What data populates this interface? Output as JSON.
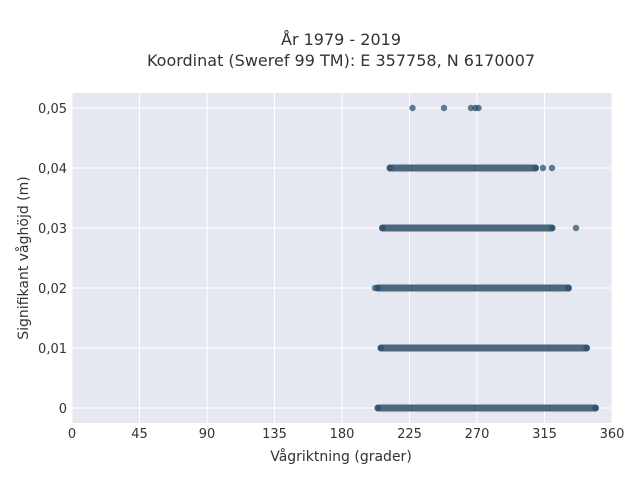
{
  "chart_data": {
    "type": "scatter",
    "title": "År 1979 - 2019",
    "subtitle": "Koordinat (Sweref 99 TM): E 357758, N 6170007",
    "xlabel": "Vågriktning (grader)",
    "ylabel": "Signifikant våghöjd (m)",
    "xlim": [
      0,
      360
    ],
    "ylim": [
      -0.0025,
      0.0525
    ],
    "xticks": [
      0,
      45,
      90,
      135,
      180,
      225,
      270,
      315,
      360
    ],
    "xtick_labels": [
      "0",
      "45",
      "90",
      "135",
      "180",
      "225",
      "270",
      "315",
      "360"
    ],
    "yticks": [
      0,
      0.01,
      0.02,
      0.03,
      0.04,
      0.05
    ],
    "ytick_labels": [
      "0",
      "0,01",
      "0,02",
      "0,03",
      "0,04",
      "0,05"
    ],
    "grid": true,
    "marker_color": "#2f5069",
    "background_color": "#e5e8f0",
    "bands": [
      {
        "y": 0.0,
        "x_min": 204,
        "x_max": 349
      },
      {
        "y": 0.01,
        "x_min": 206,
        "x_max": 343
      },
      {
        "y": 0.02,
        "x_min": 204,
        "x_max": 331
      },
      {
        "y": 0.03,
        "x_min": 207,
        "x_max": 320
      },
      {
        "y": 0.04,
        "x_min": 212,
        "x_max": 309
      }
    ],
    "points": [
      {
        "x": 227,
        "y": 0.05
      },
      {
        "x": 248,
        "y": 0.05
      },
      {
        "x": 266,
        "y": 0.05
      },
      {
        "x": 269,
        "y": 0.05
      },
      {
        "x": 271,
        "y": 0.05
      },
      {
        "x": 314,
        "y": 0.04
      },
      {
        "x": 320,
        "y": 0.04
      },
      {
        "x": 336,
        "y": 0.03
      },
      {
        "x": 202,
        "y": 0.02
      }
    ]
  }
}
